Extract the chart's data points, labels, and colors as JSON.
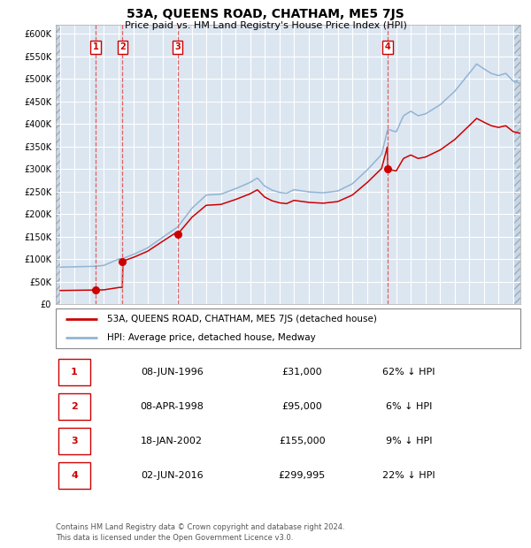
{
  "title": "53A, QUEENS ROAD, CHATHAM, ME5 7JS",
  "subtitle": "Price paid vs. HM Land Registry's House Price Index (HPI)",
  "hpi_label": "HPI: Average price, detached house, Medway",
  "property_label": "53A, QUEENS ROAD, CHATHAM, ME5 7JS (detached house)",
  "footer_line1": "Contains HM Land Registry data © Crown copyright and database right 2024.",
  "footer_line2": "This data is licensed under the Open Government Licence v3.0.",
  "transactions": [
    {
      "num": "1",
      "date": "08-JUN-1996",
      "year": 1996.44,
      "price": 31000,
      "price_str": "£31,000",
      "pct": "62% ↓ HPI"
    },
    {
      "num": "2",
      "date": "08-APR-1998",
      "year": 1998.27,
      "price": 95000,
      "price_str": "£95,000",
      "pct": "6% ↓ HPI"
    },
    {
      "num": "3",
      "date": "18-JAN-2002",
      "year": 2002.04,
      "price": 155000,
      "price_str": "£155,000",
      "pct": "9% ↓ HPI"
    },
    {
      "num": "4",
      "date": "02-JUN-2016",
      "year": 2016.42,
      "price": 299995,
      "price_str": "£299,995",
      "pct": "22% ↓ HPI"
    }
  ],
  "ylim": [
    0,
    620000
  ],
  "ytick_vals": [
    0,
    50000,
    100000,
    150000,
    200000,
    250000,
    300000,
    350000,
    400000,
    450000,
    500000,
    550000,
    600000
  ],
  "ytick_labels": [
    "£0",
    "£50K",
    "£100K",
    "£150K",
    "£200K",
    "£250K",
    "£300K",
    "£350K",
    "£400K",
    "£450K",
    "£500K",
    "£550K",
    "£600K"
  ],
  "xlim_start": 1993.7,
  "xlim_end": 2025.5,
  "xticks": [
    1994,
    1995,
    1996,
    1997,
    1998,
    1999,
    2000,
    2001,
    2002,
    2003,
    2004,
    2005,
    2006,
    2007,
    2008,
    2009,
    2010,
    2011,
    2012,
    2013,
    2014,
    2015,
    2016,
    2017,
    2018,
    2019,
    2020,
    2021,
    2022,
    2023,
    2024,
    2025
  ],
  "bg_color": "#dce6f1",
  "hatch_color": "#c5d8eb",
  "grid_color": "#ffffff",
  "hpi_color": "#92b4d4",
  "price_color": "#cc0000",
  "dot_color": "#cc0000",
  "vline_color": "#e06060",
  "box_edge_color": "#cc0000",
  "hpi_anchors_x": [
    1994.0,
    1995.0,
    1996.0,
    1996.44,
    1997.0,
    1998.0,
    1998.27,
    1999.0,
    2000.0,
    2001.0,
    2002.0,
    2002.04,
    2003.0,
    2004.0,
    2005.0,
    2006.0,
    2007.0,
    2007.5,
    2008.0,
    2008.5,
    2009.0,
    2009.5,
    2010.0,
    2011.0,
    2012.0,
    2013.0,
    2014.0,
    2015.0,
    2016.0,
    2016.42,
    2017.0,
    2017.5,
    2018.0,
    2018.5,
    2019.0,
    2019.5,
    2020.0,
    2021.0,
    2021.5,
    2022.0,
    2022.5,
    2023.0,
    2023.5,
    2024.0,
    2024.5,
    2025.0,
    2025.5
  ],
  "hpi_anchors_y": [
    82000,
    83000,
    83500,
    84000,
    86000,
    100000,
    101000,
    110000,
    125000,
    148000,
    170000,
    171000,
    212000,
    242000,
    244000,
    256000,
    270000,
    280000,
    262000,
    253000,
    248000,
    246000,
    254000,
    249000,
    247000,
    251000,
    267000,
    297000,
    332000,
    388000,
    382000,
    418000,
    428000,
    418000,
    422000,
    432000,
    442000,
    472000,
    492000,
    512000,
    533000,
    522000,
    512000,
    507000,
    512000,
    495000,
    490000
  ]
}
